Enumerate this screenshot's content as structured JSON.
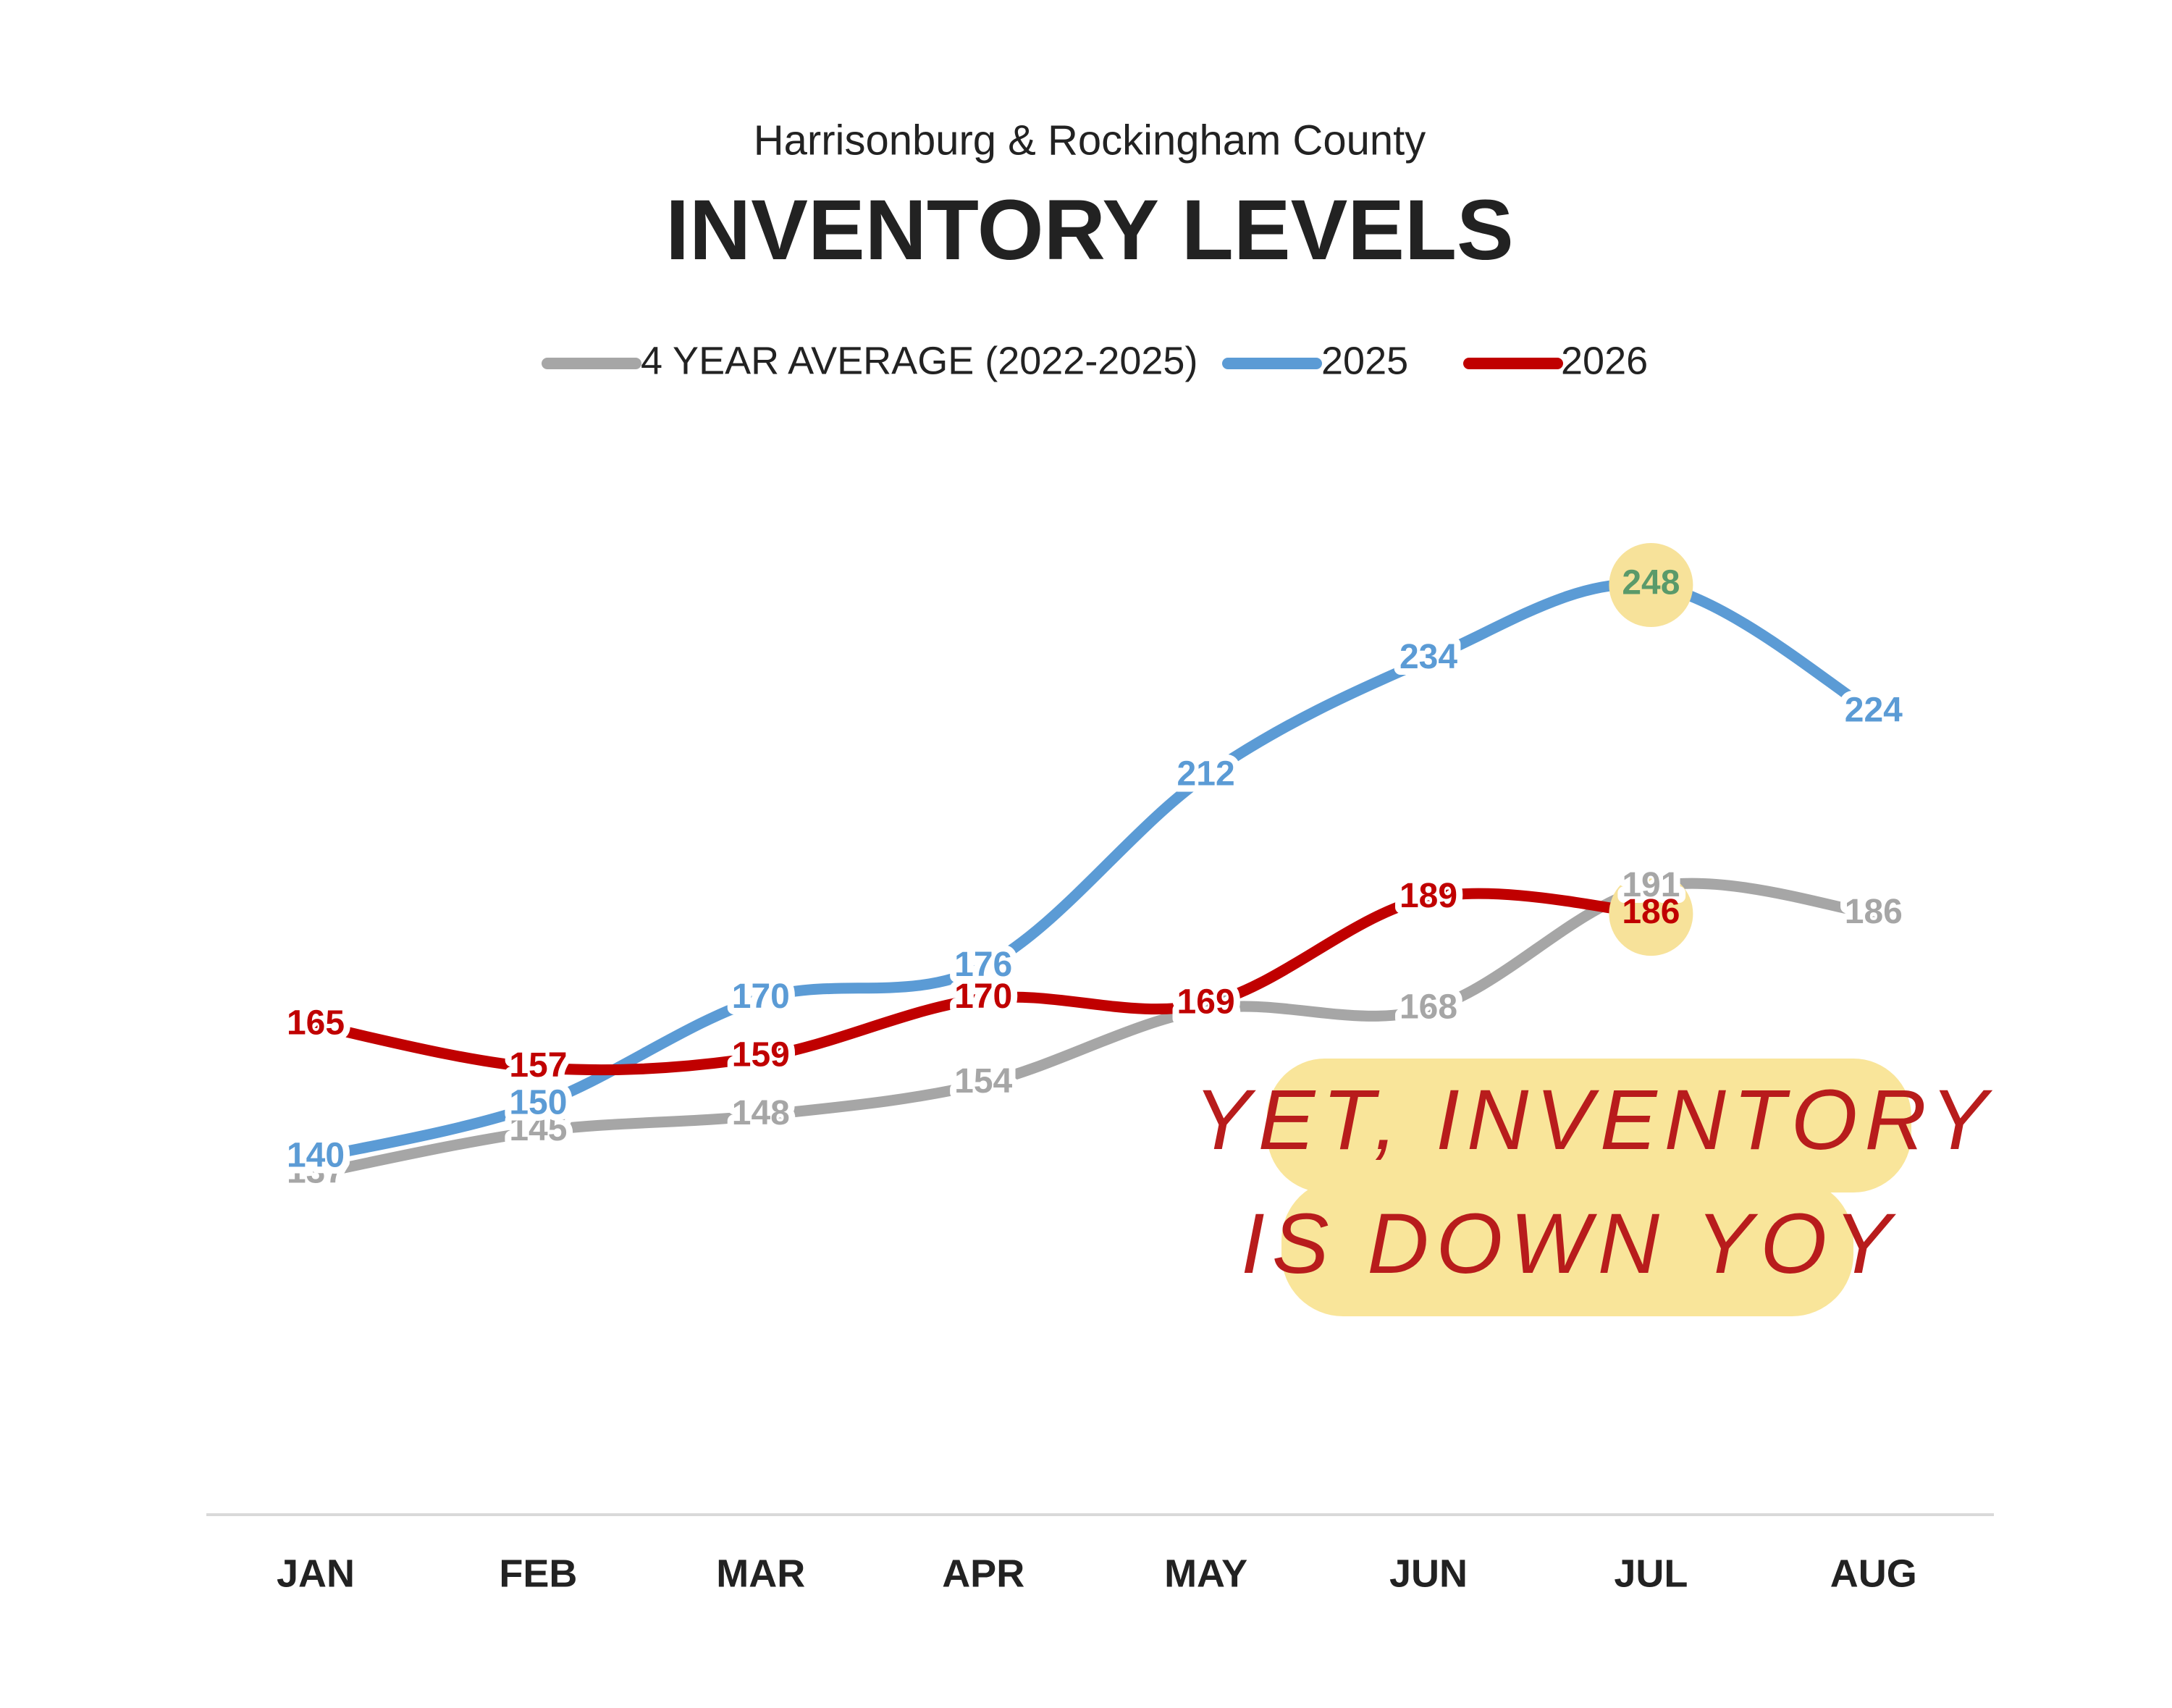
{
  "chart_data": {
    "type": "line",
    "subtitle": "Harrisonburg & Rockingham County",
    "title": "INVENTORY LEVELS",
    "categories": [
      "JAN",
      "FEB",
      "MAR",
      "APR",
      "MAY",
      "JUN",
      "JUL",
      "AUG"
    ],
    "series": [
      {
        "name": "4 YEAR AVERAGE (2022-2025)",
        "color": "#a6a6a6",
        "values": [
          137,
          145,
          148,
          154,
          168,
          168,
          191,
          186
        ]
      },
      {
        "name": "2025",
        "color": "#5b9bd5",
        "values": [
          140,
          150,
          170,
          176,
          212,
          234,
          248,
          224
        ]
      },
      {
        "name": "2026",
        "color": "#c00000",
        "values": [
          165,
          157,
          159,
          170,
          169,
          189,
          186,
          null
        ]
      }
    ],
    "highlights": [
      "series.1.values.6",
      "series.2.values.6"
    ],
    "annotation": [
      "YET, INVENTORY",
      "IS DOWN YOY"
    ],
    "legend": "top"
  }
}
